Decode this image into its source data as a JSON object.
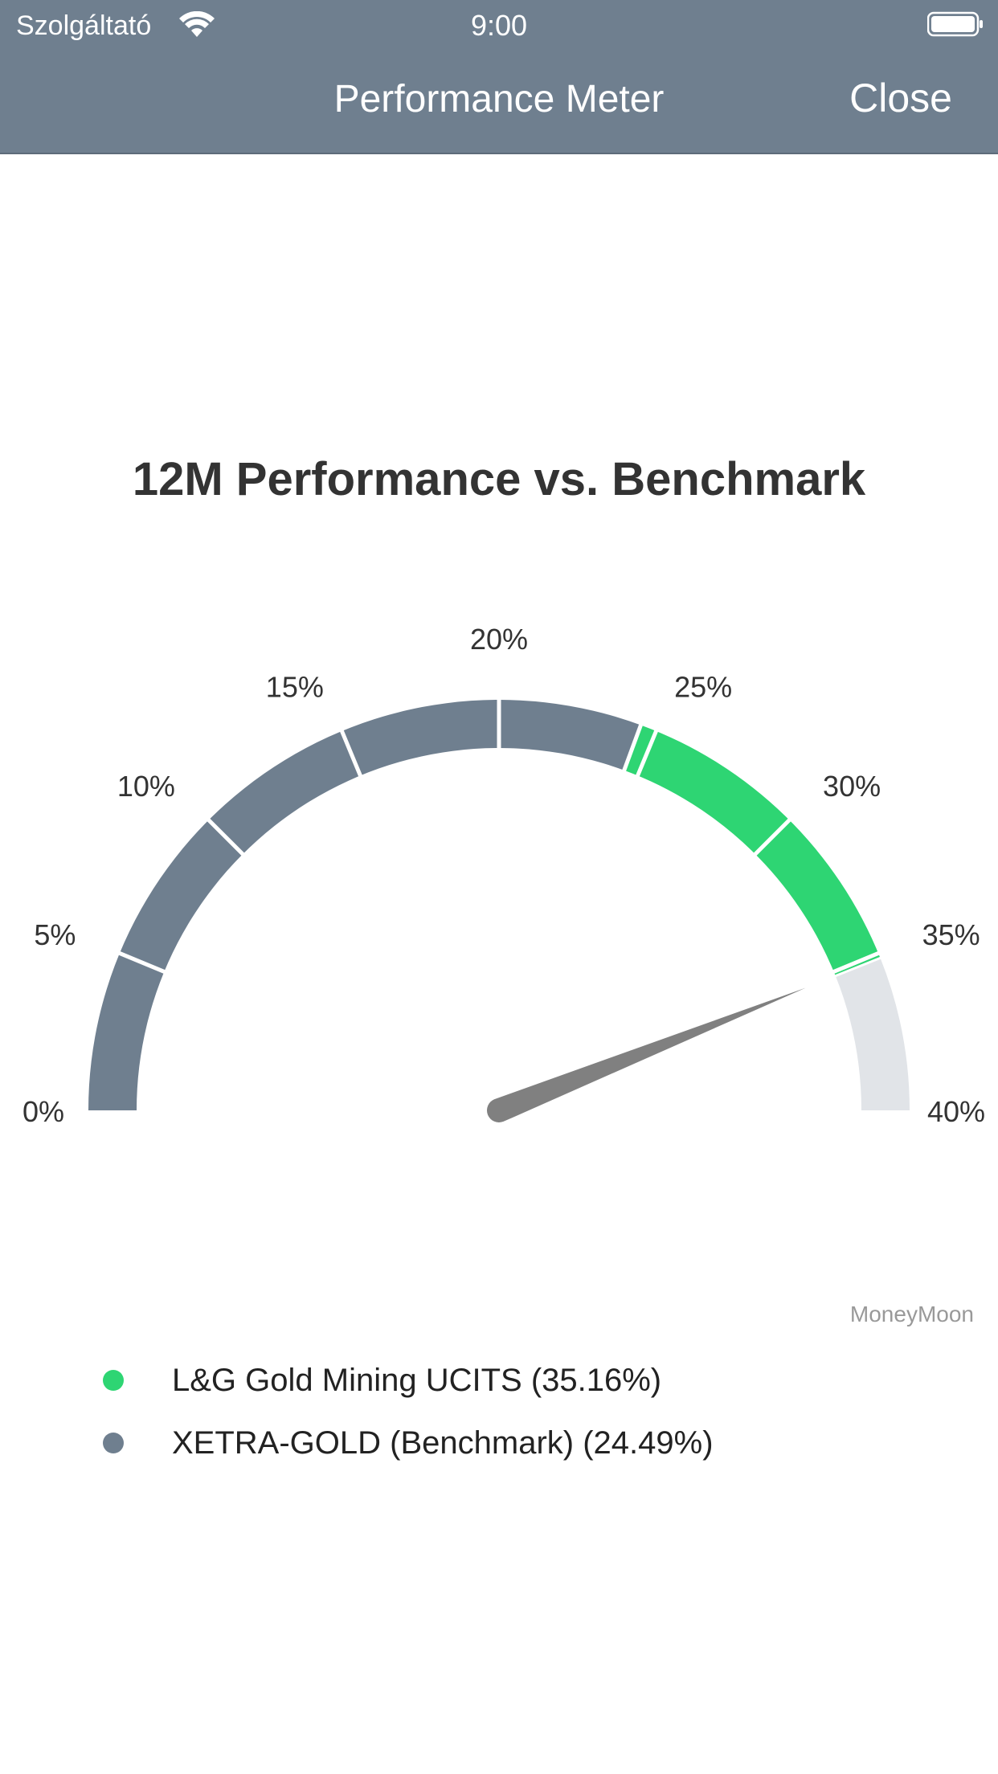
{
  "status_bar": {
    "carrier": "Szolgáltató",
    "time": "9:00"
  },
  "nav": {
    "title": "Performance Meter",
    "close_label": "Close"
  },
  "chart_data": {
    "type": "gauge",
    "title": "12M Performance vs. Benchmark",
    "min": 0,
    "max": 40,
    "ticks": [
      "0%",
      "5%",
      "10%",
      "15%",
      "20%",
      "25%",
      "30%",
      "35%",
      "40%"
    ],
    "tick_values": [
      0,
      5,
      10,
      15,
      20,
      25,
      30,
      35,
      40
    ],
    "series": [
      {
        "name": "L&G Gold Mining UCITS",
        "value": 35.16,
        "color": "#2ed573"
      },
      {
        "name": "XETRA-GOLD (Benchmark)",
        "value": 24.49,
        "color": "#6f7f8f"
      }
    ],
    "remaining_color": "#e1e4e8",
    "needle_value": 35.16,
    "needle_color": "#808080",
    "credit": "MoneyMoon"
  },
  "legend": {
    "items": [
      {
        "label": "L&G Gold Mining UCITS (35.16%)",
        "color": "#2ed573"
      },
      {
        "label": "XETRA-GOLD (Benchmark) (24.49%)",
        "color": "#6f7f8f"
      }
    ]
  }
}
